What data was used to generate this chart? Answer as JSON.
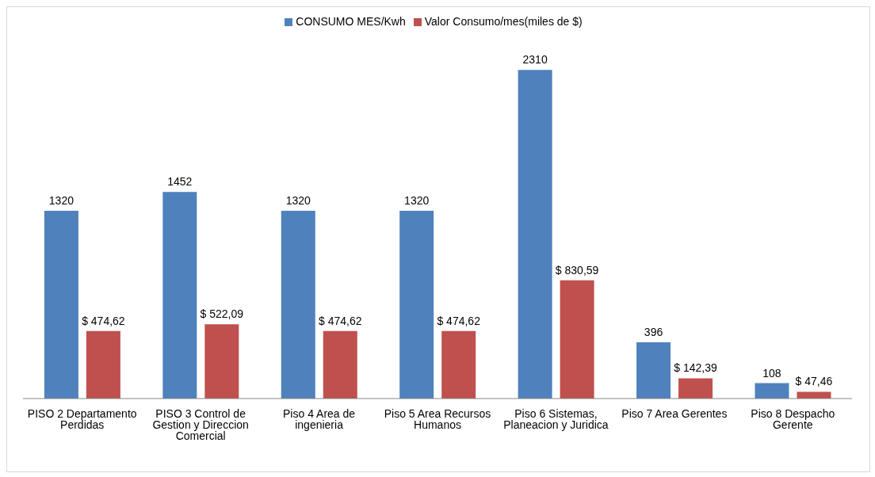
{
  "chart_data": {
    "type": "bar",
    "categories": [
      "PISO 2 Departamento Perdidas",
      "PISO 3 Control de Gestion  y  Direccion Comercial",
      "Piso 4 Area de ingenieria",
      "Piso 5 Area Recursos Humanos",
      "Piso 6 Sistemas, Planeacion y Juridica",
      "Piso 7 Area Gerentes",
      "Piso 8 Despacho Gerente"
    ],
    "series": [
      {
        "name": "CONSUMO MES/Kwh",
        "color": "#4f81bd",
        "values": [
          1320,
          1452,
          1320,
          1320,
          2310,
          396,
          108
        ],
        "value_labels": [
          "1320",
          "1452",
          "1320",
          "1320",
          "2310",
          "396",
          "108"
        ]
      },
      {
        "name": "Valor Consumo/mes(miles de $)",
        "color": "#c0504d",
        "values": [
          474.62,
          522.09,
          474.62,
          474.62,
          830.59,
          142.39,
          47.46
        ],
        "value_labels": [
          "$ 474,62",
          "$ 522,09",
          "$ 474,62",
          "$ 474,62",
          "$ 830,59",
          "$ 142,39",
          "$ 47,46"
        ]
      }
    ],
    "legend": "top",
    "grid": false
  }
}
